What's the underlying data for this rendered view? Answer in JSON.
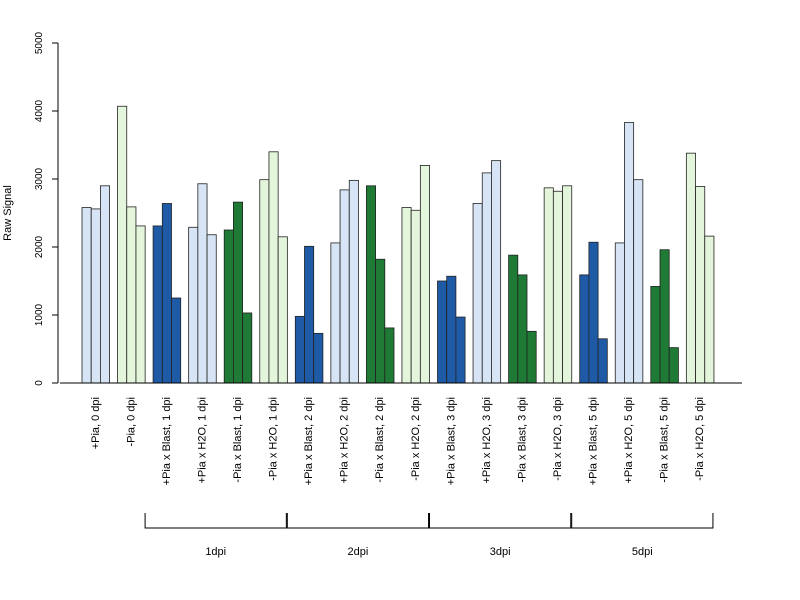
{
  "chart_data": {
    "type": "bar",
    "ylabel": "Raw Signal",
    "ylim": [
      0,
      5000
    ],
    "yticks": [
      0,
      1000,
      2000,
      3000,
      4000,
      5000
    ],
    "colors": {
      "light_blue": "#d6e4f5",
      "light_green": "#e3f5da",
      "dark_blue": "#1f5aa6",
      "dark_green": "#1f7a35",
      "bar_edge": "#222222"
    },
    "categories": [
      {
        "label": "+Pia, 0 dpi",
        "color": "light_blue",
        "values": [
          2580,
          2560,
          2900
        ]
      },
      {
        "label": "-Pia, 0 dpi",
        "color": "light_green",
        "values": [
          4070,
          2590,
          2310
        ]
      },
      {
        "label": "+Pia x Blast, 1 dpi",
        "color": "dark_blue",
        "values": [
          2310,
          2640,
          1250
        ]
      },
      {
        "label": "+Pia x H2O, 1 dpi",
        "color": "light_blue",
        "values": [
          2290,
          2930,
          2180
        ]
      },
      {
        "label": "-Pia x Blast, 1 dpi",
        "color": "dark_green",
        "values": [
          2250,
          2660,
          1030
        ]
      },
      {
        "label": "-Pia x H2O, 1 dpi",
        "color": "light_green",
        "values": [
          2990,
          3400,
          2150
        ]
      },
      {
        "label": "+Pia x Blast, 2 dpi",
        "color": "dark_blue",
        "values": [
          980,
          2010,
          730
        ]
      },
      {
        "label": "+Pia x H2O, 2 dpi",
        "color": "light_blue",
        "values": [
          2060,
          2840,
          2980
        ]
      },
      {
        "label": "-Pia x Blast, 2 dpi",
        "color": "dark_green",
        "values": [
          2900,
          1820,
          810
        ]
      },
      {
        "label": "-Pia x H2O, 2 dpi",
        "color": "light_green",
        "values": [
          2580,
          2540,
          3200
        ]
      },
      {
        "label": "+Pia x Blast, 3 dpi",
        "color": "dark_blue",
        "values": [
          1500,
          1570,
          970
        ]
      },
      {
        "label": "+Pia x H2O, 3 dpi",
        "color": "light_blue",
        "values": [
          2640,
          3090,
          3270
        ]
      },
      {
        "label": "-Pia x Blast, 3 dpi",
        "color": "dark_green",
        "values": [
          1880,
          1590,
          760
        ]
      },
      {
        "label": "-Pia x H2O, 3 dpi",
        "color": "light_green",
        "values": [
          2870,
          2820,
          2900
        ]
      },
      {
        "label": "+Pia x Blast, 5 dpi",
        "color": "dark_blue",
        "values": [
          1590,
          2070,
          650
        ]
      },
      {
        "label": "+Pia x H2O, 5 dpi",
        "color": "light_blue",
        "values": [
          2060,
          3830,
          2990
        ]
      },
      {
        "label": "-Pia x Blast, 5 dpi",
        "color": "dark_green",
        "values": [
          1420,
          1960,
          520
        ]
      },
      {
        "label": "-Pia x H2O, 5 dpi",
        "color": "light_green",
        "values": [
          3380,
          2890,
          2160
        ]
      }
    ],
    "groups": [
      {
        "label": "1dpi",
        "first": 2,
        "last": 5
      },
      {
        "label": "2dpi",
        "first": 6,
        "last": 9
      },
      {
        "label": "3dpi",
        "first": 10,
        "last": 13
      },
      {
        "label": "5dpi",
        "first": 14,
        "last": 17
      }
    ]
  }
}
